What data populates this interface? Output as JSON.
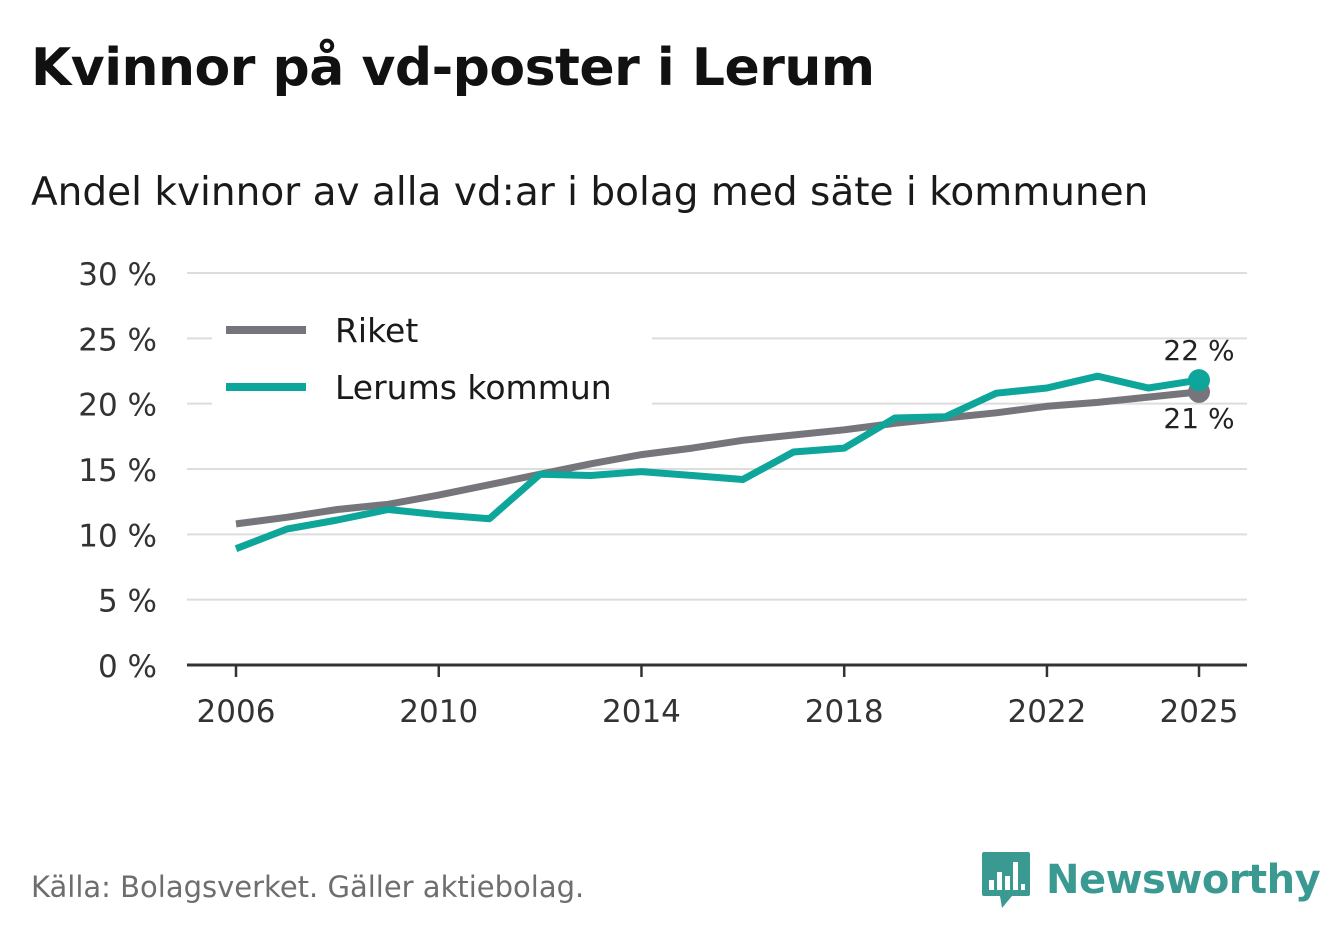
{
  "title": "Kvinnor på vd-poster i Lerum",
  "subtitle": "Andel kvinnor av alla vd:ar i bolag med säte i kommunen",
  "source": "Källa: Bolagsverket. Gäller aktiebolag.",
  "brand": "Newsworthy",
  "colors": {
    "riket": "#76757b",
    "lerum": "#0ea59a",
    "grid": "#dddddd",
    "axis": "#333333",
    "brand": "#3a9a92"
  },
  "chart_data": {
    "type": "line",
    "title": "Kvinnor på vd-poster i Lerum",
    "subtitle": "Andel kvinnor av alla vd:ar i bolag med säte i kommunen",
    "xlabel": "",
    "ylabel": "",
    "ylim": [
      0,
      30
    ],
    "yticks": [
      0,
      5,
      10,
      15,
      20,
      25,
      30
    ],
    "ytick_labels": [
      "0 %",
      "5 %",
      "10 %",
      "15 %",
      "20 %",
      "25 %",
      "30 %"
    ],
    "xlim": [
      2006,
      2025
    ],
    "xticks": [
      2006,
      2010,
      2014,
      2018,
      2022,
      2025
    ],
    "xtick_labels": [
      "2006",
      "2010",
      "2014",
      "2018",
      "2022",
      "2025"
    ],
    "grid": true,
    "legend_position": "top-left",
    "x": [
      2006,
      2007,
      2008,
      2009,
      2010,
      2011,
      2012,
      2013,
      2014,
      2015,
      2016,
      2017,
      2018,
      2019,
      2020,
      2021,
      2022,
      2023,
      2024,
      2025
    ],
    "series": [
      {
        "name": "Riket",
        "color": "#76757b",
        "values": [
          10.8,
          11.3,
          11.9,
          12.3,
          13.0,
          13.8,
          14.6,
          15.4,
          16.1,
          16.6,
          17.2,
          17.6,
          18.0,
          18.5,
          18.9,
          19.3,
          19.8,
          20.1,
          20.5,
          20.9
        ],
        "end_label": "21 %"
      },
      {
        "name": "Lerums kommun",
        "color": "#0ea59a",
        "values": [
          8.9,
          10.4,
          11.1,
          11.9,
          11.5,
          11.2,
          14.6,
          14.5,
          14.8,
          14.5,
          14.2,
          16.3,
          16.6,
          18.9,
          19.0,
          20.8,
          21.2,
          22.1,
          21.2,
          21.8
        ],
        "end_label": "22 %"
      }
    ]
  }
}
